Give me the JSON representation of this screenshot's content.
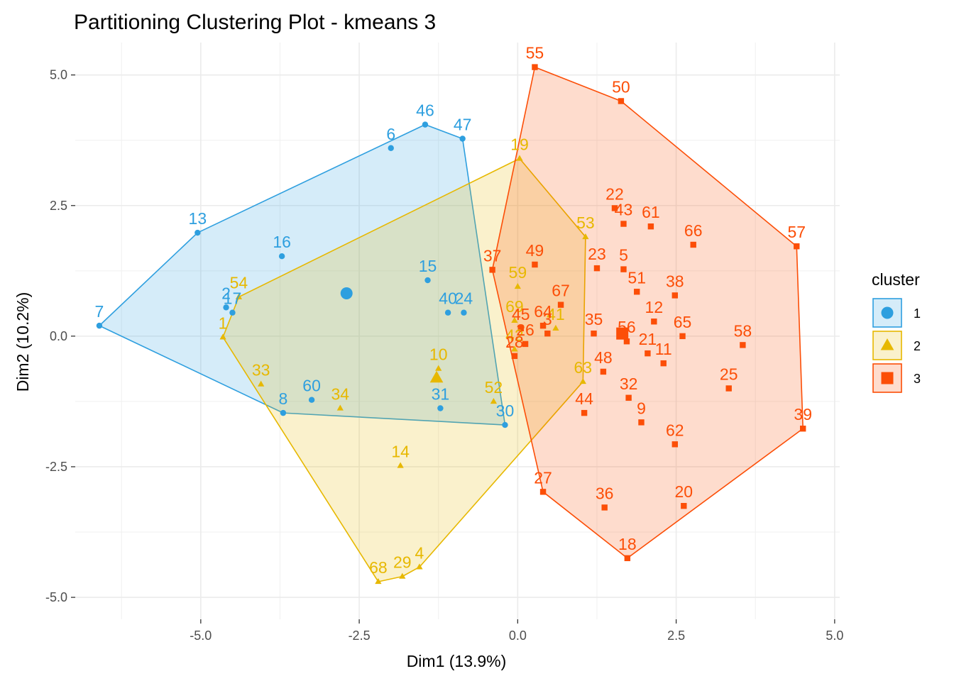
{
  "chart_data": {
    "type": "scatter",
    "title": "Partitioning Clustering Plot - kmeans 3",
    "xlabel": "Dim1 (13.9%)",
    "ylabel": "Dim2 (10.2%)",
    "xlim": [
      -6.98,
      5.08
    ],
    "ylim": [
      -5.42,
      5.62
    ],
    "xticks": [
      -5.0,
      -2.5,
      0.0,
      2.5,
      5.0
    ],
    "xtick_labels": [
      "-5.0",
      "-2.5",
      "0.0",
      "2.5",
      "5.0"
    ],
    "yticks": [
      -5.0,
      -2.5,
      0.0,
      2.5,
      5.0
    ],
    "ytick_labels": [
      "-5.0",
      "-2.5",
      "0.0",
      "2.5",
      "5.0"
    ],
    "grid": true,
    "legend": {
      "title": "cluster",
      "position": "right",
      "items": [
        "1",
        "2",
        "3"
      ]
    },
    "colors": {
      "1": "#2e9fdf",
      "2": "#e7b800",
      "3": "#fc4e07"
    },
    "series": [
      {
        "name": "1",
        "shape": "circle",
        "points": [
          {
            "id": "46",
            "x": -1.46,
            "y": 4.05
          },
          {
            "id": "47",
            "x": -0.87,
            "y": 3.78
          },
          {
            "id": "6",
            "x": -2.0,
            "y": 3.6
          },
          {
            "id": "13",
            "x": -5.05,
            "y": 1.98
          },
          {
            "id": "16",
            "x": -3.72,
            "y": 1.53
          },
          {
            "id": "15",
            "x": -1.42,
            "y": 1.07
          },
          {
            "id": "40",
            "x": -1.1,
            "y": 0.45
          },
          {
            "id": "24",
            "x": -0.85,
            "y": 0.45
          },
          {
            "id": "2",
            "x": -4.6,
            "y": 0.55
          },
          {
            "id": "17",
            "x": -4.5,
            "y": 0.45
          },
          {
            "id": "7",
            "x": -6.6,
            "y": 0.2
          },
          {
            "id": "60",
            "x": -3.25,
            "y": -1.22
          },
          {
            "id": "8",
            "x": -3.7,
            "y": -1.47
          },
          {
            "id": "31",
            "x": -1.22,
            "y": -1.38
          },
          {
            "id": "30",
            "x": -0.2,
            "y": -1.7
          }
        ],
        "centroid": {
          "x": -2.7,
          "y": 0.82
        }
      },
      {
        "name": "2",
        "shape": "triangle",
        "points": [
          {
            "id": "19",
            "x": 0.03,
            "y": 3.4
          },
          {
            "id": "53",
            "x": 1.07,
            "y": 1.9
          },
          {
            "id": "54",
            "x": -4.4,
            "y": 0.75
          },
          {
            "id": "1",
            "x": -4.65,
            "y": -0.02
          },
          {
            "id": "59",
            "x": 0.0,
            "y": 0.95
          },
          {
            "id": "69",
            "x": -0.05,
            "y": 0.3
          },
          {
            "id": "42",
            "x": -0.05,
            "y": -0.25
          },
          {
            "id": "41",
            "x": 0.6,
            "y": 0.15
          },
          {
            "id": "10",
            "x": -1.25,
            "y": -0.62
          },
          {
            "id": "33",
            "x": -4.05,
            "y": -0.92
          },
          {
            "id": "34",
            "x": -2.8,
            "y": -1.38
          },
          {
            "id": "52",
            "x": -0.38,
            "y": -1.25
          },
          {
            "id": "63",
            "x": 1.03,
            "y": -0.87
          },
          {
            "id": "14",
            "x": -1.85,
            "y": -2.48
          },
          {
            "id": "68",
            "x": -2.2,
            "y": -4.7
          },
          {
            "id": "29",
            "x": -1.82,
            "y": -4.6
          },
          {
            "id": "4",
            "x": -1.55,
            "y": -4.42
          }
        ],
        "centroid": {
          "x": -1.28,
          "y": -0.8
        }
      },
      {
        "name": "3",
        "shape": "square",
        "points": [
          {
            "id": "55",
            "x": 0.27,
            "y": 5.15
          },
          {
            "id": "50",
            "x": 1.63,
            "y": 4.5
          },
          {
            "id": "22",
            "x": 1.53,
            "y": 2.45
          },
          {
            "id": "43",
            "x": 1.67,
            "y": 2.15
          },
          {
            "id": "61",
            "x": 2.1,
            "y": 2.1
          },
          {
            "id": "66",
            "x": 2.77,
            "y": 1.75
          },
          {
            "id": "57",
            "x": 4.4,
            "y": 1.72
          },
          {
            "id": "37",
            "x": -0.4,
            "y": 1.27
          },
          {
            "id": "49",
            "x": 0.27,
            "y": 1.37
          },
          {
            "id": "23",
            "x": 1.25,
            "y": 1.3
          },
          {
            "id": "5",
            "x": 1.67,
            "y": 1.28
          },
          {
            "id": "51",
            "x": 1.88,
            "y": 0.85
          },
          {
            "id": "38",
            "x": 2.48,
            "y": 0.78
          },
          {
            "id": "67",
            "x": 0.68,
            "y": 0.6
          },
          {
            "id": "12",
            "x": 2.15,
            "y": 0.28
          },
          {
            "id": "45",
            "x": 0.05,
            "y": 0.15
          },
          {
            "id": "64",
            "x": 0.4,
            "y": 0.2
          },
          {
            "id": "3",
            "x": 0.47,
            "y": 0.05
          },
          {
            "id": "35",
            "x": 1.2,
            "y": 0.05
          },
          {
            "id": "65",
            "x": 2.6,
            "y": 0.0
          },
          {
            "id": "58",
            "x": 3.55,
            "y": -0.17
          },
          {
            "id": "26",
            "x": 0.12,
            "y": -0.15
          },
          {
            "id": "28",
            "x": -0.05,
            "y": -0.38
          },
          {
            "id": "56",
            "x": 1.72,
            "y": -0.1
          },
          {
            "id": "21",
            "x": 2.05,
            "y": -0.33
          },
          {
            "id": "11",
            "x": 2.3,
            "y": -0.52
          },
          {
            "id": "48",
            "x": 1.35,
            "y": -0.68
          },
          {
            "id": "25",
            "x": 3.33,
            "y": -1.0
          },
          {
            "id": "32",
            "x": 1.75,
            "y": -1.18
          },
          {
            "id": "44",
            "x": 1.05,
            "y": -1.47
          },
          {
            "id": "9",
            "x": 1.95,
            "y": -1.65
          },
          {
            "id": "62",
            "x": 2.48,
            "y": -2.07
          },
          {
            "id": "39",
            "x": 4.5,
            "y": -1.77
          },
          {
            "id": "27",
            "x": 0.4,
            "y": -2.98
          },
          {
            "id": "36",
            "x": 1.37,
            "y": -3.28
          },
          {
            "id": "20",
            "x": 2.62,
            "y": -3.25
          },
          {
            "id": "18",
            "x": 1.73,
            "y": -4.25
          }
        ],
        "centroid": {
          "x": 1.65,
          "y": 0.05
        }
      }
    ]
  }
}
